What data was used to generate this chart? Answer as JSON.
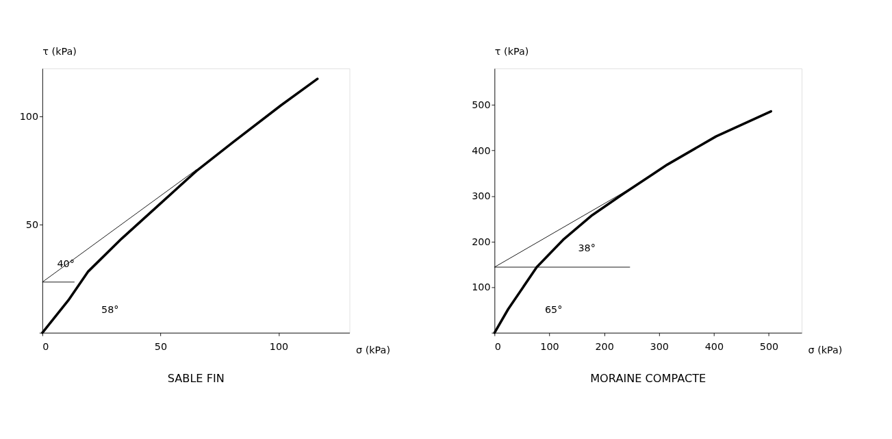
{
  "chart_data": [
    {
      "type": "line",
      "title": "SABLE FIN",
      "xlabel": "σ (kPa)",
      "ylabel": "τ (kPa)",
      "xlim": [
        0,
        130
      ],
      "ylim": [
        0,
        122
      ],
      "xticks": [
        0,
        50,
        100
      ],
      "yticks": [
        {
          "value": 0,
          "label": null
        },
        50,
        100
      ],
      "grid": false,
      "marker": "none",
      "line_style": "solid",
      "series": [
        {
          "color": "#000000",
          "x": [
            0,
            11,
            19.4,
            33.5,
            49.9,
            65.2,
            80.6,
            101,
            116.4
          ],
          "values": [
            0,
            15,
            28.3,
            43.4,
            59.6,
            74.7,
            87.9,
            105,
            117.2
          ]
        },
        {
          "color": "#000000",
          "x": [
            0,
            65.2
          ],
          "values": [
            23.4,
            75.3
          ]
        },
        {
          "color": "#000000",
          "x": [
            0,
            13.6
          ],
          "values": [
            23.4,
            23.4
          ]
        }
      ],
      "annotations": [
        "40°",
        "58°"
      ]
    },
    {
      "type": "line",
      "title": "MORAINE COMPACTE",
      "xlabel": "σ (kPa)",
      "ylabel": "τ (kPa)",
      "xlim": [
        0,
        560
      ],
      "ylim": [
        0,
        580
      ],
      "xticks": [
        0,
        100,
        200,
        300,
        400,
        500
      ],
      "yticks": [
        {
          "value": 0,
          "label": null
        },
        100,
        200,
        300,
        400,
        500
      ],
      "grid": false,
      "marker": "none",
      "line_style": "solid",
      "series": [
        {
          "color": "#000000",
          "x": [
            0,
            25,
            77,
            125,
            178,
            236,
            315,
            404,
            504
          ],
          "values": [
            0,
            52,
            144,
            204,
            258,
            306,
            369,
            431,
            486
          ]
        },
        {
          "color": "#000000",
          "x": [
            0,
            257
          ],
          "values": [
            144,
            323
          ]
        },
        {
          "color": "#000000",
          "x": [
            0,
            247
          ],
          "values": [
            144,
            144
          ]
        }
      ],
      "annotations": [
        "38°",
        "65°"
      ]
    }
  ]
}
